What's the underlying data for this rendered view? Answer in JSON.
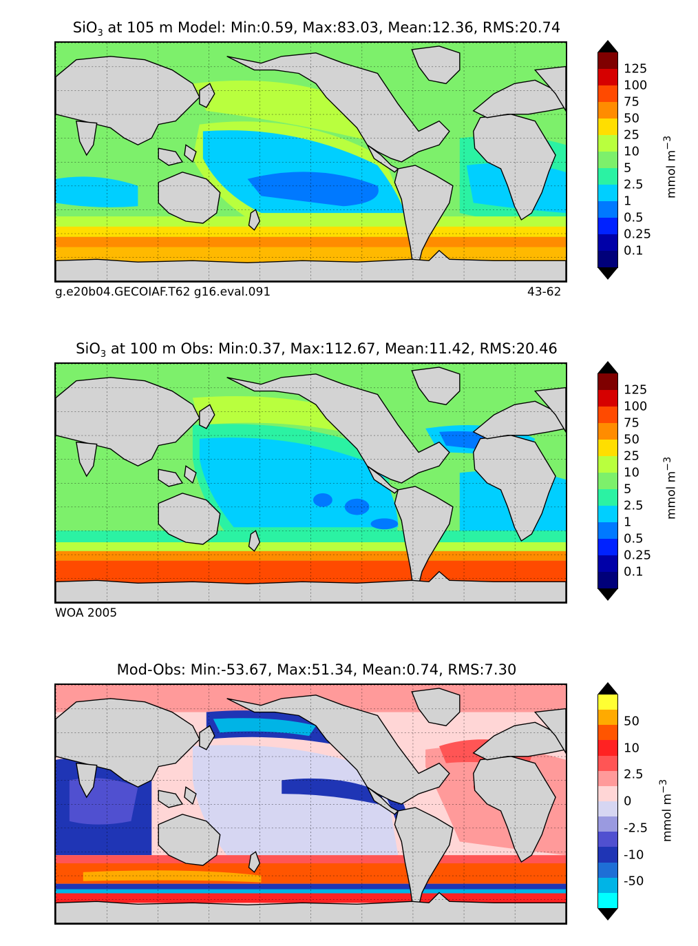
{
  "panels": [
    {
      "id": "model",
      "title_prefix": "SiO",
      "title_sub": "3",
      "title_rest": " at 105 m Model: Min:0.59, Max:83.03, Mean:12.36, RMS:20.74",
      "caption_left": "g.e20b04.GECOIAF.T62 g16.eval.091",
      "caption_right": "43-62",
      "colorbar": {
        "labels": [
          "125",
          "100",
          "75",
          "50",
          "25",
          "10",
          "5",
          "2.5",
          "1",
          "0.5",
          "0.25",
          "0.1"
        ],
        "colors": [
          "#7f0000",
          "#d60000",
          "#ff4a00",
          "#ff8c00",
          "#ffde00",
          "#b9ff3e",
          "#7df06b",
          "#2bf2a3",
          "#00cfff",
          "#0079ff",
          "#0022ff",
          "#0000a8",
          "#00007a"
        ],
        "over_color": "#000000",
        "under_color": "#000000",
        "unit": "mmol m",
        "unit_sup": "−3"
      }
    },
    {
      "id": "obs",
      "title_prefix": "SiO",
      "title_sub": "3",
      "title_rest": " at 100 m Obs: Min:0.37, Max:112.67, Mean:11.42, RMS:20.46",
      "caption_left": "WOA 2005",
      "caption_right": "",
      "colorbar": {
        "labels": [
          "125",
          "100",
          "75",
          "50",
          "25",
          "10",
          "5",
          "2.5",
          "1",
          "0.5",
          "0.25",
          "0.1"
        ],
        "colors": [
          "#7f0000",
          "#d60000",
          "#ff4a00",
          "#ff8c00",
          "#ffde00",
          "#b9ff3e",
          "#7df06b",
          "#2bf2a3",
          "#00cfff",
          "#0079ff",
          "#0022ff",
          "#0000a8",
          "#00007a"
        ],
        "over_color": "#000000",
        "under_color": "#000000",
        "unit": "mmol m",
        "unit_sup": "−3"
      }
    },
    {
      "id": "diff",
      "title_prefix": "",
      "title_sub": "",
      "title_rest": "Mod-Obs: Min:-53.67, Max:51.34, Mean:0.74, RMS:7.30",
      "caption_left": "",
      "caption_right": "",
      "colorbar": {
        "labels": [
          "50",
          "10",
          "2.5",
          "0",
          "-2.5",
          "-10",
          "-50"
        ],
        "colors": [
          "#ffff33",
          "#ffaa00",
          "#ff5500",
          "#ff2222",
          "#ff5555",
          "#ff9a9a",
          "#ffd6d6",
          "#d6d6f2",
          "#9a9ae0",
          "#5050d0",
          "#1f35b5",
          "#1e6fd6",
          "#00b4e6",
          "#00ffff"
        ],
        "over_color": "#000000",
        "under_color": "#000000",
        "unit": "mmol m",
        "unit_sup": "−3"
      }
    }
  ]
}
